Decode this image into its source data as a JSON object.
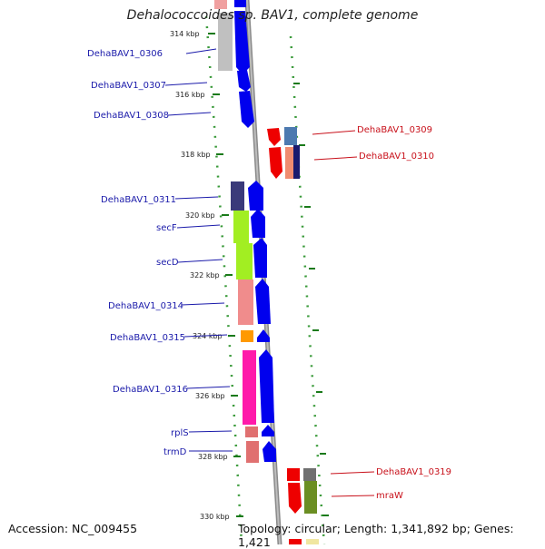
{
  "title": "Dehalococcoides sp. BAV1, complete genome",
  "footer": {
    "accession": "Accession: NC_009455",
    "topology": "Topology: circular; Length: 1,341,892 bp; Genes: 1,421"
  },
  "scale_marks": [
    "314 kbp",
    "316 kbp",
    "318 kbp",
    "320 kbp",
    "322 kbp",
    "324 kbp",
    "326 kbp",
    "328 kbp",
    "330 kbp"
  ],
  "forward_genes": [
    {
      "label": "DehaBAV1_0306",
      "color": "#c0c0c0"
    },
    {
      "label": "DehaBAV1_0307",
      "color": "#0000ee"
    },
    {
      "label": "DehaBAV1_0308",
      "color": "#0000ee"
    },
    {
      "label": "DehaBAV1_0311",
      "color": "#3a3a7a"
    },
    {
      "label": "secF",
      "color": "#a2ee22"
    },
    {
      "label": "secD",
      "color": "#a2ee22"
    },
    {
      "label": "DehaBAV1_0314",
      "color": "#f08c8c"
    },
    {
      "label": "DehaBAV1_0315",
      "color": "#ff9900"
    },
    {
      "label": "DehaBAV1_0316",
      "color": "#ff1aaa"
    },
    {
      "label": "rplS",
      "color": "#e07070"
    },
    {
      "label": "trmD",
      "color": "#e07070"
    }
  ],
  "reverse_genes": [
    {
      "label": "DehaBAV1_0309",
      "color": "#4d7ab0"
    },
    {
      "label": "DehaBAV1_0310",
      "color": "#1a1a6e"
    },
    {
      "label": "DehaBAV1_0319",
      "color": "#707070"
    },
    {
      "label": "mraW",
      "color": "#6b8e23"
    }
  ]
}
